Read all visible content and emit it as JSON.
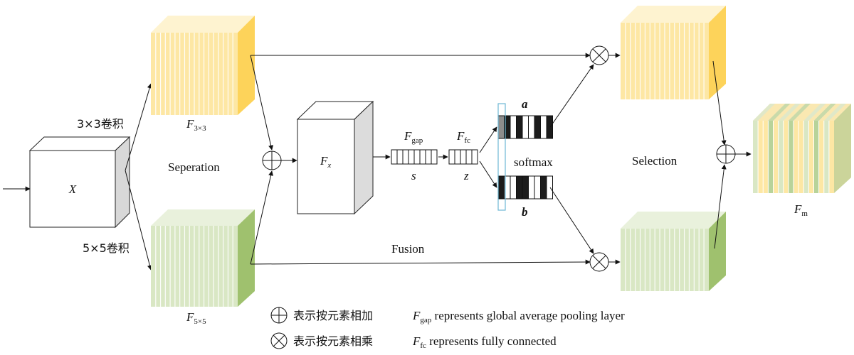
{
  "input": {
    "label": "X"
  },
  "branch3": {
    "conv_label": "3×3卷积",
    "name_base": "F",
    "name_sub": "3×3"
  },
  "branch5": {
    "conv_label": "5×5卷积",
    "name_base": "F",
    "name_sub": "5×5"
  },
  "stages": {
    "seperation": "Seperation",
    "fusion": "Fusion",
    "selection": "Selection",
    "softmax": "softmax"
  },
  "fx": {
    "base": "F",
    "sub": "x"
  },
  "gap": {
    "base": "F",
    "sub": "gap",
    "vec": "s"
  },
  "fc": {
    "base": "F",
    "sub": "fc",
    "vec": "z"
  },
  "attn": {
    "a": "a",
    "b": "b"
  },
  "output": {
    "base": "F",
    "sub": "m"
  },
  "legend": {
    "sum_cn": "表示按元素相加",
    "sum_desc_base": "F",
    "sum_desc_sub": "gap",
    "sum_desc": " represents global average pooling layer",
    "mul_cn": "表示按元素相乘",
    "mul_desc_base": "F",
    "mul_desc_sub": "fc",
    "mul_desc": " represents fully connected"
  },
  "colors": {
    "yellow_face": "#fde7a4",
    "yellow_top": "#fef3d0",
    "yellow_side": "#fdd35a",
    "green_face": "#d9e7c4",
    "green_top": "#e9f1dc",
    "green_side": "#9fc16e",
    "cell_dark": "#1c1c1c",
    "cell_gray": "#8c8c8c",
    "highlight": "#6fb8d4"
  }
}
